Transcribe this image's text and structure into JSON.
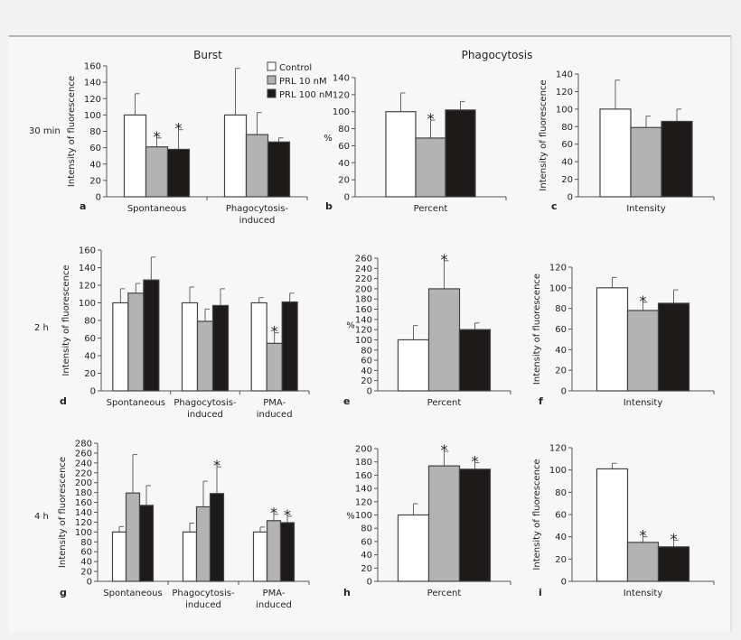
{
  "colors": {
    "control": "#ffffff",
    "prl10": "#b3b3b3",
    "prl100": "#1e1a1a",
    "axis": "#555555"
  },
  "column_titles": [
    "Burst",
    "Phagocytosis"
  ],
  "row_labels": [
    "30 min",
    "2 h",
    "4 h"
  ],
  "legend": [
    "Control",
    "PRL 10 nM",
    "PRL 100 nM"
  ],
  "chart_data": [
    {
      "panel": "a",
      "type": "bar",
      "ylabel": "Intensity of fluorescence",
      "ylim": [
        0,
        160
      ],
      "ystep": 20,
      "categories": [
        "Spontaneous",
        "Phagocytosis-|induced"
      ],
      "series": [
        {
          "name": "Control",
          "values": [
            100,
            100
          ],
          "error_top": [
            126,
            157
          ]
        },
        {
          "name": "PRL 10 nM",
          "values": [
            61,
            76
          ],
          "error_top": [
            72,
            103
          ]
        },
        {
          "name": "PRL 100 nM",
          "values": [
            58,
            67
          ],
          "error_top": [
            82,
            72
          ]
        }
      ],
      "significant": [
        [
          0,
          1
        ],
        [
          0,
          2
        ]
      ]
    },
    {
      "panel": "b",
      "type": "bar",
      "ylabel": "%",
      "ylim": [
        0,
        140
      ],
      "ystep": 20,
      "categories": [
        "Percent"
      ],
      "series": [
        {
          "name": "Control",
          "values": [
            100
          ],
          "error_top": [
            122
          ]
        },
        {
          "name": "PRL 10 nM",
          "values": [
            69
          ],
          "error_top": [
            90
          ]
        },
        {
          "name": "PRL 100 nM",
          "values": [
            102
          ],
          "error_top": [
            112
          ]
        }
      ],
      "significant": [
        [
          0,
          1
        ]
      ]
    },
    {
      "panel": "c",
      "type": "bar",
      "ylabel": "Intensity of fluorescence",
      "ylim": [
        0,
        140
      ],
      "ystep": 20,
      "categories": [
        "Intensity"
      ],
      "series": [
        {
          "name": "Control",
          "values": [
            100
          ],
          "error_top": [
            133
          ]
        },
        {
          "name": "PRL 10 nM",
          "values": [
            79
          ],
          "error_top": [
            92
          ]
        },
        {
          "name": "PRL 100 nM",
          "values": [
            86
          ],
          "error_top": [
            100
          ]
        }
      ],
      "significant": []
    },
    {
      "panel": "d",
      "type": "bar",
      "ylabel": "Intensity of fluorescence",
      "ylim": [
        0,
        160
      ],
      "ystep": 20,
      "categories": [
        "Spontaneous",
        "Phagocytosis-|induced",
        "PMA-|induced"
      ],
      "series": [
        {
          "name": "Control",
          "values": [
            100,
            100,
            100
          ],
          "error_top": [
            116,
            118,
            106
          ]
        },
        {
          "name": "PRL 10 nM",
          "values": [
            111,
            79,
            54
          ],
          "error_top": [
            122,
            93,
            66
          ]
        },
        {
          "name": "PRL 100 nM",
          "values": [
            126,
            97,
            101
          ],
          "error_top": [
            152,
            116,
            111
          ]
        }
      ],
      "significant": [
        [
          2,
          1
        ]
      ]
    },
    {
      "panel": "e",
      "type": "bar",
      "ylabel": "%",
      "ylim": [
        0,
        260
      ],
      "ystep": 20,
      "categories": [
        "Percent"
      ],
      "series": [
        {
          "name": "Control",
          "values": [
            100
          ],
          "error_top": [
            128
          ]
        },
        {
          "name": "PRL 10 nM",
          "values": [
            200
          ],
          "error_top": [
            255
          ]
        },
        {
          "name": "PRL 100 nM",
          "values": [
            120
          ],
          "error_top": [
            133
          ]
        }
      ],
      "significant": [
        [
          0,
          1
        ]
      ]
    },
    {
      "panel": "f",
      "type": "bar",
      "ylabel": "Intensity of fluorescence",
      "ylim": [
        0,
        120
      ],
      "ystep": 20,
      "categories": [
        "Intensity"
      ],
      "series": [
        {
          "name": "Control",
          "values": [
            100
          ],
          "error_top": [
            110
          ]
        },
        {
          "name": "PRL 10 nM",
          "values": [
            78
          ],
          "error_top": [
            86
          ]
        },
        {
          "name": "PRL 100 nM",
          "values": [
            85
          ],
          "error_top": [
            98
          ]
        }
      ],
      "significant": [
        [
          0,
          1
        ]
      ]
    },
    {
      "panel": "g",
      "type": "bar",
      "ylabel": "Intensity of fluorescence",
      "ylim": [
        0,
        280
      ],
      "ystep": 20,
      "categories": [
        "Spontaneous",
        "Phagocytosis-|induced",
        "PMA-|induced"
      ],
      "series": [
        {
          "name": "Control",
          "values": [
            100,
            100,
            100
          ],
          "error_top": [
            111,
            118,
            110
          ]
        },
        {
          "name": "PRL 10 nM",
          "values": [
            179,
            151,
            123
          ],
          "error_top": [
            257,
            203,
            136
          ]
        },
        {
          "name": "PRL 100 nM",
          "values": [
            154,
            178,
            119
          ],
          "error_top": [
            194,
            232,
            132
          ]
        }
      ],
      "significant": [
        [
          1,
          2
        ],
        [
          2,
          1
        ],
        [
          2,
          2
        ]
      ]
    },
    {
      "panel": "h",
      "type": "bar",
      "ylabel": "%",
      "ylim": [
        0,
        200
      ],
      "ystep": 20,
      "categories": [
        "Percent"
      ],
      "series": [
        {
          "name": "Control",
          "values": [
            100
          ],
          "error_top": [
            117
          ]
        },
        {
          "name": "PRL 10 nM",
          "values": [
            174
          ],
          "error_top": [
            196
          ]
        },
        {
          "name": "PRL 100 nM",
          "values": [
            169
          ],
          "error_top": [
            179
          ]
        }
      ],
      "significant": [
        [
          0,
          1
        ],
        [
          0,
          2
        ]
      ]
    },
    {
      "panel": "i",
      "type": "bar",
      "ylabel": "Intensity of fluorescence",
      "ylim": [
        0,
        120
      ],
      "ystep": 20,
      "categories": [
        "Intensity"
      ],
      "series": [
        {
          "name": "Control",
          "values": [
            101
          ],
          "error_top": [
            106
          ]
        },
        {
          "name": "PRL 10 nM",
          "values": [
            35
          ],
          "error_top": [
            40
          ]
        },
        {
          "name": "PRL 100 nM",
          "values": [
            31
          ],
          "error_top": [
            37
          ]
        }
      ],
      "significant": [
        [
          0,
          1
        ],
        [
          0,
          2
        ]
      ]
    }
  ]
}
